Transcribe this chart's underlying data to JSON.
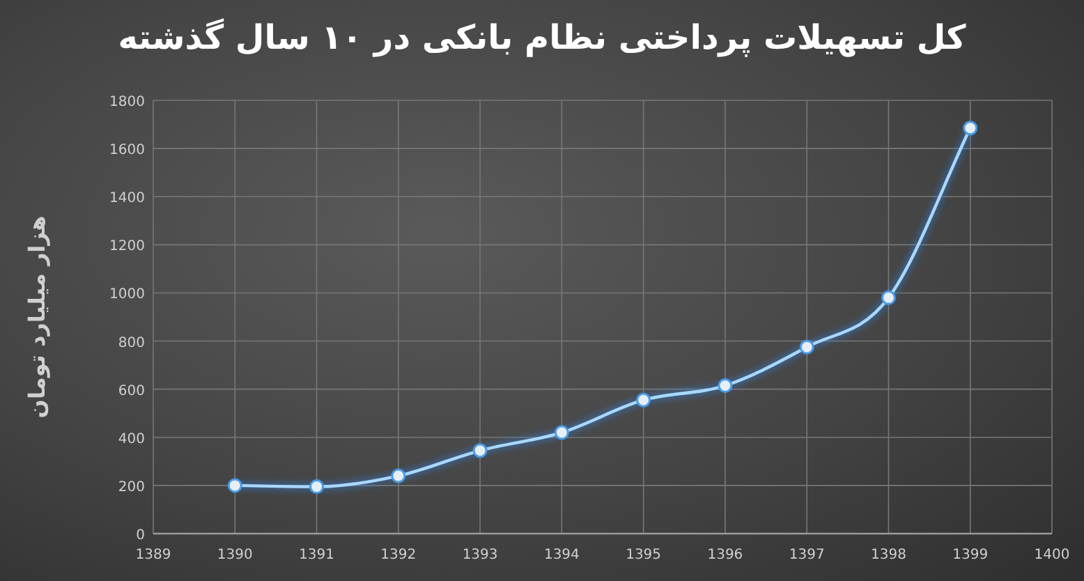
{
  "chart_data": {
    "type": "line",
    "title": "کل تسهیلات پرداختی نظام بانکی در ۱۰ سال گذشته",
    "ylabel": "هزار میلیارد تومان",
    "x": [
      1390,
      1391,
      1392,
      1393,
      1394,
      1395,
      1396,
      1397,
      1398,
      1399
    ],
    "series": [
      {
        "color": "#a9d8ff",
        "values": [
          200,
          195,
          240,
          345,
          420,
          555,
          615,
          775,
          980,
          1685
        ]
      }
    ],
    "xlim": [
      1389,
      1400
    ],
    "xticks": [
      1389,
      1390,
      1391,
      1392,
      1393,
      1394,
      1395,
      1396,
      1397,
      1398,
      1399,
      1400
    ],
    "ylim": [
      0,
      1800
    ],
    "yticks": [
      0,
      200,
      400,
      600,
      800,
      1000,
      1200,
      1400,
      1600,
      1800
    ],
    "grid": true,
    "marker": "circle",
    "line_style": "solid"
  }
}
